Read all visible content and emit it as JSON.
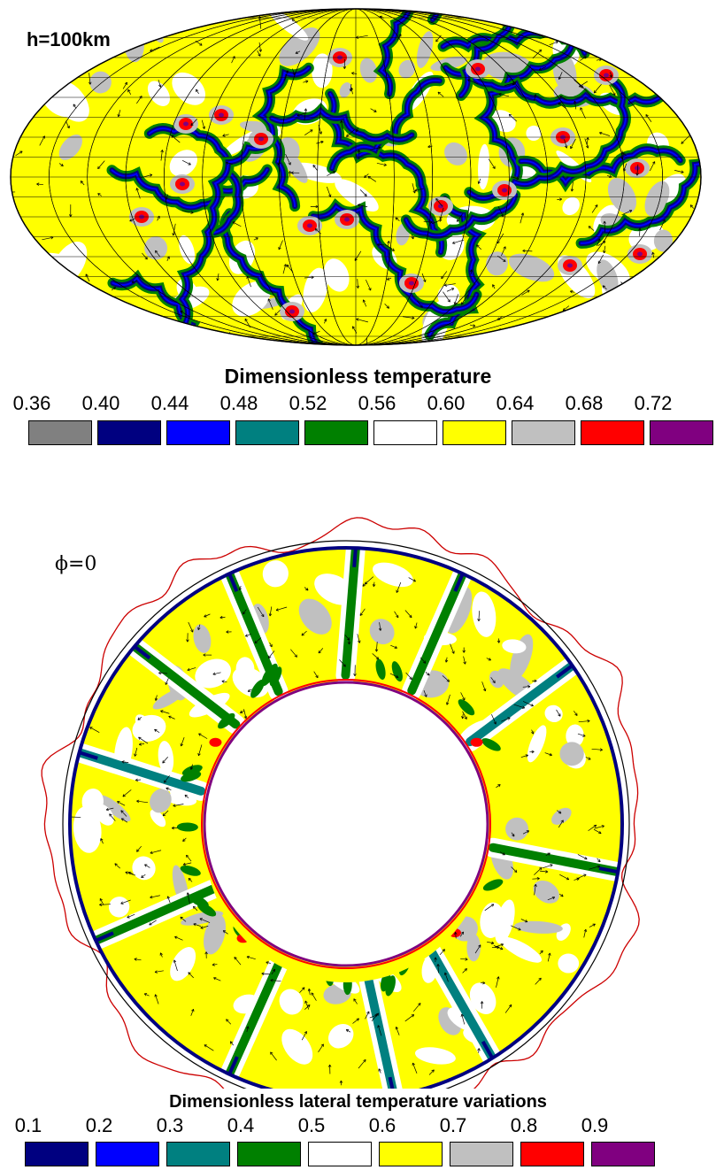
{
  "map_panel": {
    "depth_label": "h=100km"
  },
  "temperature_legend": {
    "title": "Dimensionless temperature",
    "labels": [
      "0.36",
      "0.40",
      "0.44",
      "0.48",
      "0.52",
      "0.56",
      "0.60",
      "0.64",
      "0.68",
      "0.72"
    ],
    "colors": [
      "#808080",
      "#000080",
      "#0000ff",
      "#008080",
      "#008000",
      "#ffffff",
      "#ffff00",
      "#c0c0c0",
      "#ff0000",
      "#800080"
    ]
  },
  "ring_panel": {
    "section_label": "ϕ=0"
  },
  "variation_legend": {
    "title": "Dimensionless lateral temperature variations",
    "labels": [
      "0.1",
      "0.2",
      "0.3",
      "0.4",
      "0.5",
      "0.6",
      "0.7",
      "0.8",
      "0.9"
    ],
    "colors": [
      "#000080",
      "#0000ff",
      "#008080",
      "#008000",
      "#ffffff",
      "#ffff00",
      "#c0c0c0",
      "#ff0000",
      "#800080"
    ]
  },
  "colors": {
    "background": "#ffffff",
    "dominant_field": "#ffff00",
    "cold_downwelling": "#000080",
    "hot_upwelling": "#ff0000",
    "geoid_trace": "#cc0000"
  },
  "icons": [
    "velocity-arrow-icon"
  ]
}
